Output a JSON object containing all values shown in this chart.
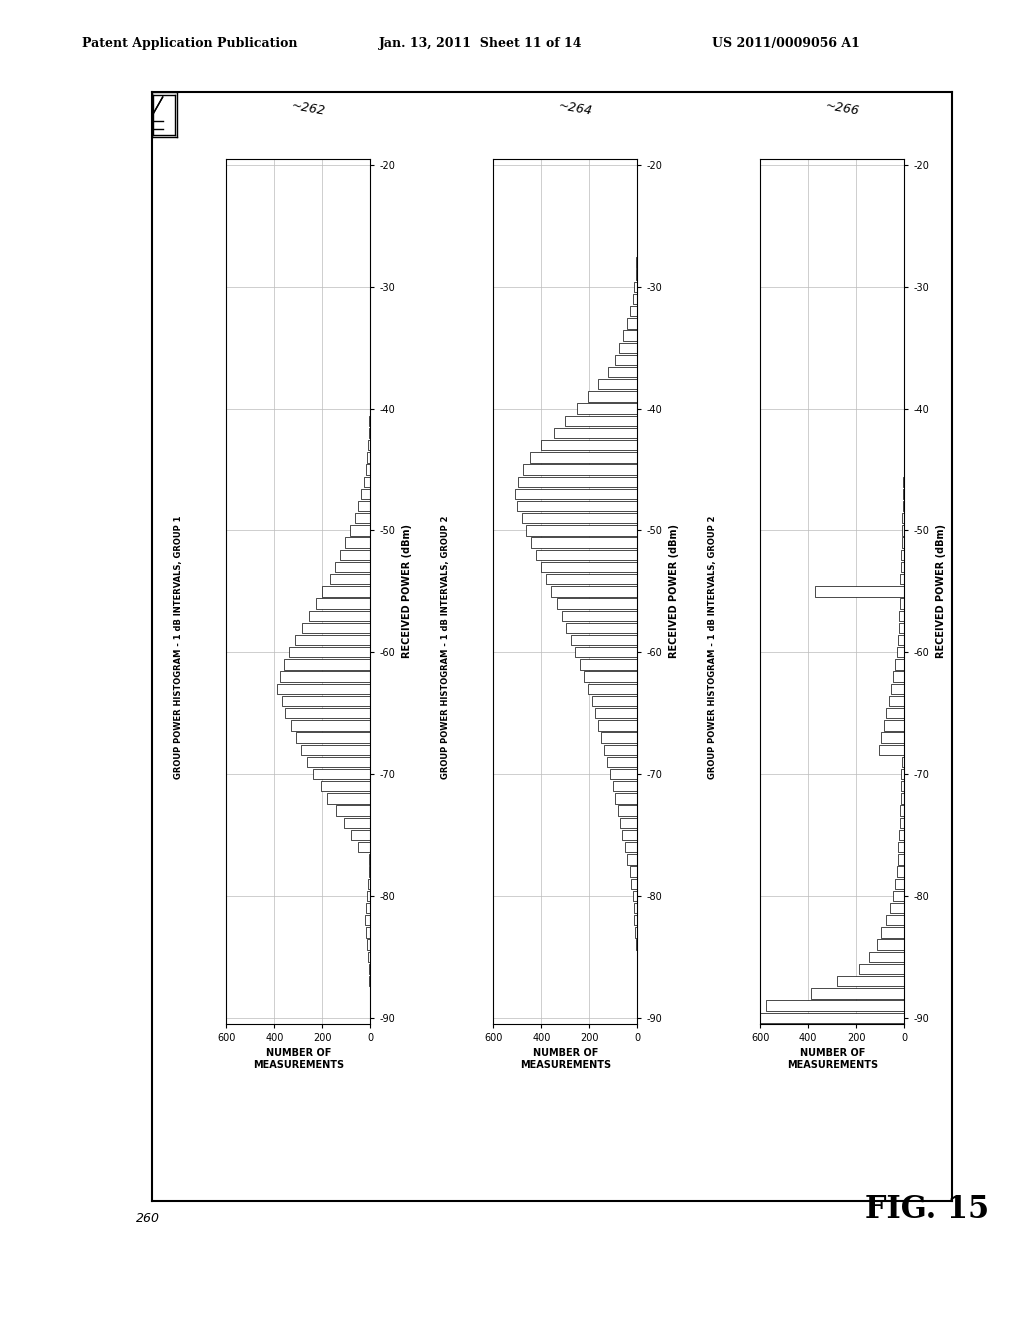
{
  "header_left": "Patent Application Publication",
  "header_center": "Jan. 13, 2011  Sheet 11 of 14",
  "header_right": "US 2011/0009056 A1",
  "fig_label": "FIG. 15",
  "outer_label": "260",
  "chart_labels": [
    "262",
    "264",
    "266"
  ],
  "chart_titles": [
    "GROUP POWER HISTOGRAM - 1 dB INTERVALS, GROUP 1",
    "GROUP POWER HISTOGRAM - 1 dB INTERVALS, GROUP 2",
    "GROUP POWER HISTOGRAM - 1 dB INTERVALS, GROUP 2"
  ],
  "xlabel": "NUMBER OF\nMEASUREMENTS",
  "ylabel": "RECEIVED POWER (dBm)",
  "xlim_max": 600,
  "yticks": [
    -90,
    -80,
    -70,
    -60,
    -50,
    -40,
    -30,
    -20
  ],
  "xticks": [
    0,
    200,
    400,
    600
  ],
  "hist1_powers": [
    -87,
    -86,
    -85,
    -84,
    -83,
    -82,
    -81,
    -80,
    -79,
    -78,
    -77,
    -76,
    -75,
    -74,
    -73,
    -72,
    -71,
    -70,
    -69,
    -68,
    -67,
    -66,
    -65,
    -64,
    -63,
    -62,
    -61,
    -60,
    -59,
    -58,
    -57,
    -56,
    -55,
    -54,
    -53,
    -52,
    -51,
    -50,
    -49,
    -48,
    -47,
    -46,
    -45,
    -44,
    -43,
    -42,
    -41,
    -40,
    -39,
    -38,
    -37,
    -36,
    -35,
    -34,
    -33,
    -32,
    -31,
    -30
  ],
  "hist1_counts": [
    5,
    8,
    12,
    15,
    20,
    22,
    18,
    14,
    10,
    8,
    6,
    50,
    80,
    110,
    145,
    180,
    205,
    240,
    265,
    290,
    310,
    330,
    355,
    370,
    390,
    375,
    360,
    340,
    315,
    285,
    255,
    225,
    200,
    170,
    148,
    125,
    105,
    85,
    65,
    50,
    38,
    28,
    20,
    14,
    10,
    7,
    5,
    3,
    2,
    1,
    1,
    0,
    0,
    0,
    0,
    0,
    0,
    0
  ],
  "hist2_powers": [
    -85,
    -84,
    -83,
    -82,
    -81,
    -80,
    -79,
    -78,
    -77,
    -76,
    -75,
    -74,
    -73,
    -72,
    -71,
    -70,
    -69,
    -68,
    -67,
    -66,
    -65,
    -64,
    -63,
    -62,
    -61,
    -60,
    -59,
    -58,
    -57,
    -56,
    -55,
    -54,
    -53,
    -52,
    -51,
    -50,
    -49,
    -48,
    -47,
    -46,
    -45,
    -44,
    -43,
    -42,
    -41,
    -40,
    -39,
    -38,
    -37,
    -36,
    -35,
    -34,
    -33,
    -32,
    -31,
    -30,
    -29,
    -28
  ],
  "hist2_counts": [
    3,
    6,
    9,
    12,
    16,
    20,
    25,
    32,
    42,
    52,
    62,
    72,
    82,
    92,
    102,
    115,
    128,
    140,
    150,
    162,
    175,
    190,
    205,
    222,
    240,
    258,
    275,
    295,
    315,
    335,
    358,
    380,
    402,
    422,
    442,
    462,
    480,
    500,
    510,
    498,
    478,
    448,
    400,
    348,
    300,
    252,
    205,
    162,
    122,
    95,
    75,
    58,
    42,
    30,
    20,
    12,
    7,
    4
  ],
  "hist3_powers": [
    -90,
    -89,
    -88,
    -87,
    -86,
    -85,
    -84,
    -83,
    -82,
    -81,
    -80,
    -79,
    -78,
    -77,
    -76,
    -75,
    -74,
    -73,
    -72,
    -71,
    -70,
    -69,
    -68,
    -67,
    -66,
    -65,
    -64,
    -63,
    -62,
    -61,
    -60,
    -59,
    -58,
    -57,
    -56,
    -55,
    -54,
    -53,
    -52,
    -51,
    -50,
    -49,
    -48,
    -47,
    -46,
    -45,
    -44,
    -43,
    -42,
    -41,
    -40,
    -39,
    -38
  ],
  "hist3_counts": [
    600,
    575,
    390,
    280,
    190,
    145,
    115,
    95,
    75,
    58,
    48,
    38,
    32,
    28,
    25,
    22,
    19,
    17,
    15,
    13,
    12,
    10,
    105,
    95,
    85,
    75,
    65,
    55,
    46,
    38,
    32,
    27,
    24,
    21,
    18,
    370,
    17,
    15,
    13,
    11,
    10,
    8,
    7,
    5,
    4,
    3,
    2,
    2,
    1,
    1,
    1,
    0,
    0
  ],
  "background_color": "#ffffff",
  "bar_color": "#ffffff",
  "bar_edge_color": "#000000",
  "grid_color": "#bbbbbb",
  "border_color": "#000000"
}
